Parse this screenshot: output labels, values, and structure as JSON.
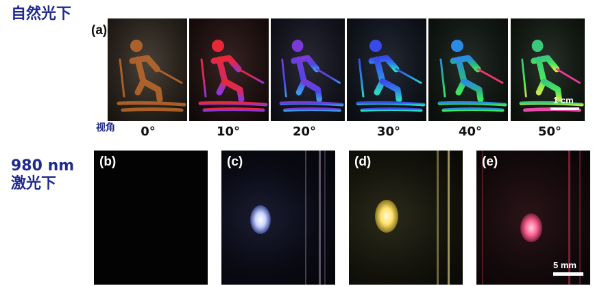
{
  "labels": {
    "natural_light": "自然光下",
    "laser_line1": "980 nm",
    "laser_line2": "激光下",
    "view_angle": "视角"
  },
  "panels": {
    "a": "(a)",
    "b": "(b)",
    "c": "(c)",
    "d": "(d)",
    "e": "(e)"
  },
  "angles": [
    "0°",
    "10°",
    "20°",
    "30°",
    "40°",
    "50°"
  ],
  "scale_bars": {
    "top": "1 cm",
    "bottom": "5 mm"
  },
  "colors": {
    "label_blue": "#1f2a8c",
    "skier_0": "#b8652a",
    "skier_10": "#d82838",
    "skier_20": "#5a3ad8",
    "skier_30": "#2a7ae8",
    "skier_40": "#2ab08a",
    "skier_50": "#3ad868",
    "spot_c": "#c8d2ff",
    "spot_d": "#ffe26a",
    "spot_e": "#ff6a9a"
  }
}
